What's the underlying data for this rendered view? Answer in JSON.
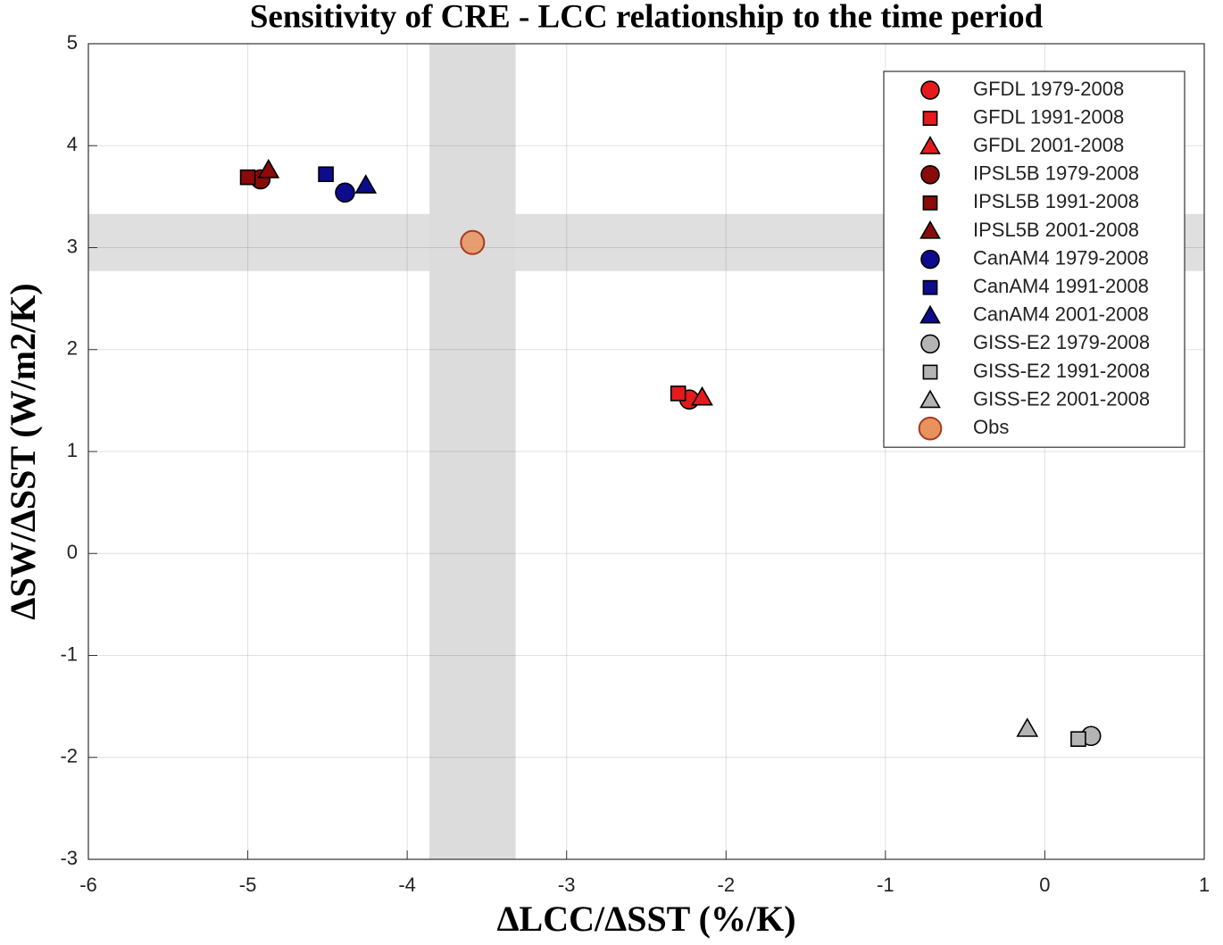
{
  "chart_data": {
    "type": "scatter",
    "title": "Sensitivity of CRE - LCC relationship to the time period",
    "x_label": "ΔLCC/ΔSST (%/K)",
    "y_label": "ΔSW/ΔSST (W/m2/K)",
    "xlim": [
      -6,
      1
    ],
    "xticks": [
      -6,
      -5,
      -4,
      -3,
      -2,
      -1,
      0,
      1
    ],
    "ylim": [
      -3,
      5
    ],
    "yticks": [
      -3,
      -2,
      -1,
      0,
      1,
      2,
      3,
      4,
      5
    ],
    "grid": true,
    "legend": "upper right",
    "x_band": [
      -3.86,
      -3.32
    ],
    "y_band": [
      2.77,
      3.33
    ],
    "band_color": "#dcdcdc",
    "series": [
      {
        "name": "GFDL 1979-2008",
        "color": "#e41a1c",
        "marker": "circle",
        "x": [
          -2.23
        ],
        "values": [
          1.51
        ]
      },
      {
        "name": "GFDL 1991-2008",
        "color": "#e41a1c",
        "marker": "square",
        "x": [
          -2.3
        ],
        "values": [
          1.57
        ]
      },
      {
        "name": "GFDL 2001-2008",
        "color": "#e41a1c",
        "marker": "triangle",
        "x": [
          -2.15
        ],
        "values": [
          1.53
        ]
      },
      {
        "name": "IPSL5B 1979-2008",
        "color": "#8b0a0a",
        "marker": "circle",
        "x": [
          -4.92
        ],
        "values": [
          3.67
        ]
      },
      {
        "name": "IPSL5B 1991-2008",
        "color": "#8b0a0a",
        "marker": "square",
        "x": [
          -5.0
        ],
        "values": [
          3.69
        ]
      },
      {
        "name": "IPSL5B 2001-2008",
        "color": "#8b0a0a",
        "marker": "triangle",
        "x": [
          -4.87
        ],
        "values": [
          3.76
        ]
      },
      {
        "name": "CanAM4 1979-2008",
        "color": "#0c0c8c",
        "marker": "circle",
        "x": [
          -4.39
        ],
        "values": [
          3.54
        ]
      },
      {
        "name": "CanAM4 1991-2008",
        "color": "#0c0c8c",
        "marker": "square",
        "x": [
          -4.51
        ],
        "values": [
          3.72
        ]
      },
      {
        "name": "CanAM4 2001-2008",
        "color": "#0c0c8c",
        "marker": "triangle",
        "x": [
          -4.26
        ],
        "values": [
          3.61
        ]
      },
      {
        "name": "GISS-E2 1979-2008",
        "color": "#b4b4b4",
        "marker": "circle",
        "x": [
          0.29
        ],
        "values": [
          -1.79
        ]
      },
      {
        "name": "GISS-E2 1991-2008",
        "color": "#b4b4b4",
        "marker": "square",
        "x": [
          0.21
        ],
        "values": [
          -1.82
        ]
      },
      {
        "name": "GISS-E2 2001-2008",
        "color": "#b4b4b4",
        "marker": "triangle",
        "x": [
          -0.11
        ],
        "values": [
          -1.72
        ]
      },
      {
        "name": "Obs",
        "color": "#e8925c",
        "marker": "obs",
        "x": [
          -3.59
        ],
        "values": [
          3.05
        ]
      }
    ]
  }
}
